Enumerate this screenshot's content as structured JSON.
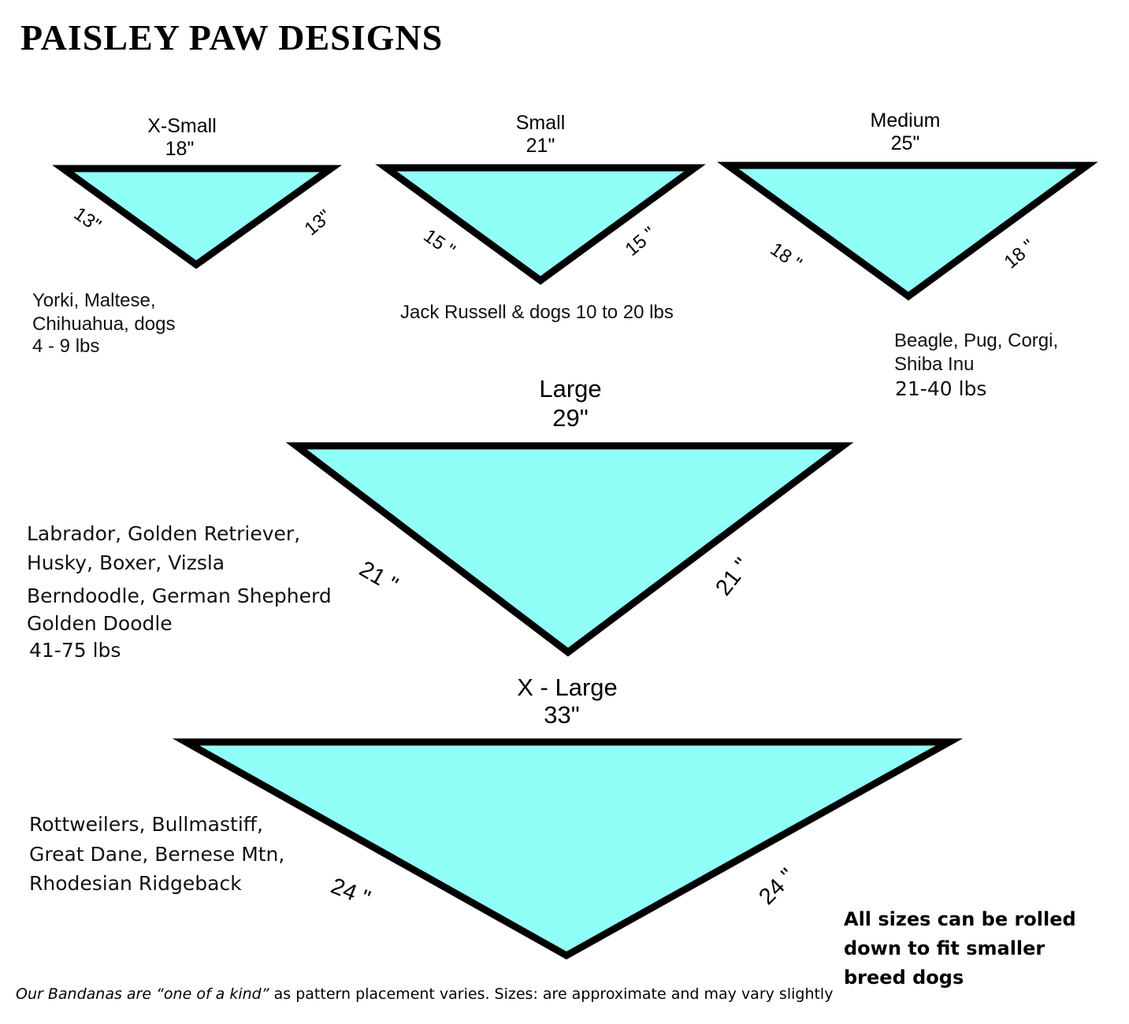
{
  "brand": "PAISLEY PAW DESIGNS",
  "fill_color": "#8ffff8",
  "sizes": [
    {
      "name": "X-Small",
      "width": "18\"",
      "side": "13\"",
      "breeds": [
        "Yorki, Maltese,",
        "Chihuahua, dogs",
        "4 - 9 lbs"
      ]
    },
    {
      "name": "Small",
      "width": "21\"",
      "side": "15 \"",
      "breeds": [
        "Jack Russell & dogs 10 to 20 lbs"
      ]
    },
    {
      "name": "Medium",
      "width": "25\"",
      "side": "18 \"",
      "breeds": [
        "Beagle, Pug, Corgi,",
        "Shiba Inu",
        "21-40 lbs"
      ]
    },
    {
      "name": "Large",
      "width": "29\"",
      "side": "21 \"",
      "breeds": [
        "Labrador, Golden Retriever,",
        "Husky, Boxer, Vizsla",
        "Berndoodle, German Shepherd",
        "Golden Doodle",
        "41-75 lbs"
      ]
    },
    {
      "name": "X - Large",
      "width": "33\"",
      "side": "24 \"",
      "breeds": [
        "Rottweilers, Bullmastiff,",
        "Great Dane, Bernese Mtn,",
        "Rhodesian Ridgeback"
      ]
    }
  ],
  "note": [
    "All sizes can be rolled",
    "down to fit smaller",
    "breed dogs"
  ],
  "footer": {
    "italic": "Our Bandanas are “one of a kind”",
    "rest": " as pattern placement varies. Sizes: are approximate and may vary slightly"
  }
}
